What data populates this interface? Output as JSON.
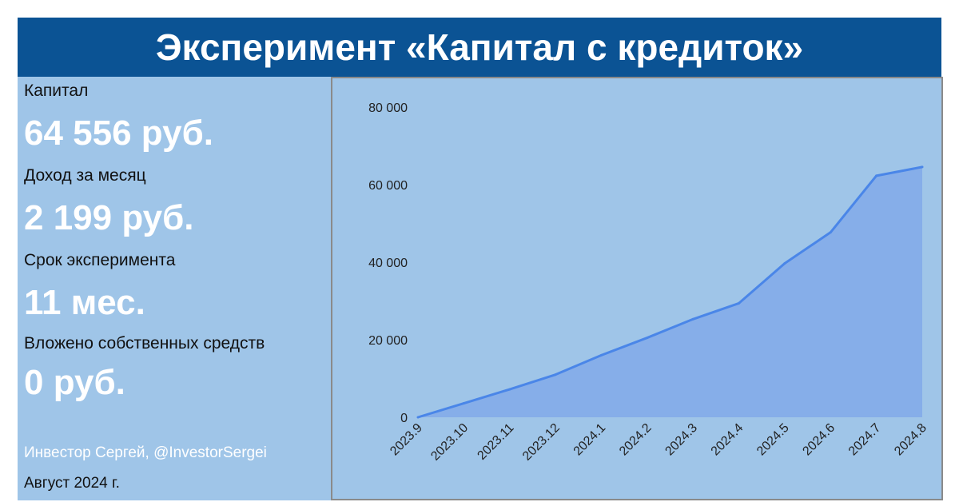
{
  "header": {
    "title": "Эксперимент «Капитал с кредиток»"
  },
  "stats": {
    "capital_label": "Капитал",
    "capital_value": "64 556 руб.",
    "income_label": "Доход за месяц",
    "income_value": "2 199 руб.",
    "duration_label": "Срок эксперимента",
    "duration_value": "11 мес.",
    "invested_label": "Вложено собственных средств",
    "invested_value": "0 руб."
  },
  "footer": {
    "author": "Инвестор Сергей, @InvestorSergei",
    "date": "Август 2024 г."
  },
  "colors": {
    "title_bg": "#0b5394",
    "panel_bg": "#9fc5e8",
    "area_fill": "#86aee9",
    "line": "#4a86e8"
  },
  "chart_data": {
    "type": "area",
    "title": "",
    "xlabel": "",
    "ylabel": "",
    "categories": [
      "2023.9",
      "2023.10",
      "2023.11",
      "2023.12",
      "2024.1",
      "2024.2",
      "2024.3",
      "2024.4",
      "2024.5",
      "2024.6",
      "2024.7",
      "2024.8"
    ],
    "values": [
      0,
      3600,
      7200,
      11000,
      16000,
      20500,
      25300,
      29400,
      39700,
      47700,
      62300,
      64556
    ],
    "ylim": [
      0,
      80000
    ],
    "yticks": [
      0,
      20000,
      40000,
      60000,
      80000
    ],
    "ytick_labels": [
      "0",
      "20 000",
      "40 000",
      "60 000",
      "80 000"
    ],
    "grid": false,
    "legend": "none"
  }
}
